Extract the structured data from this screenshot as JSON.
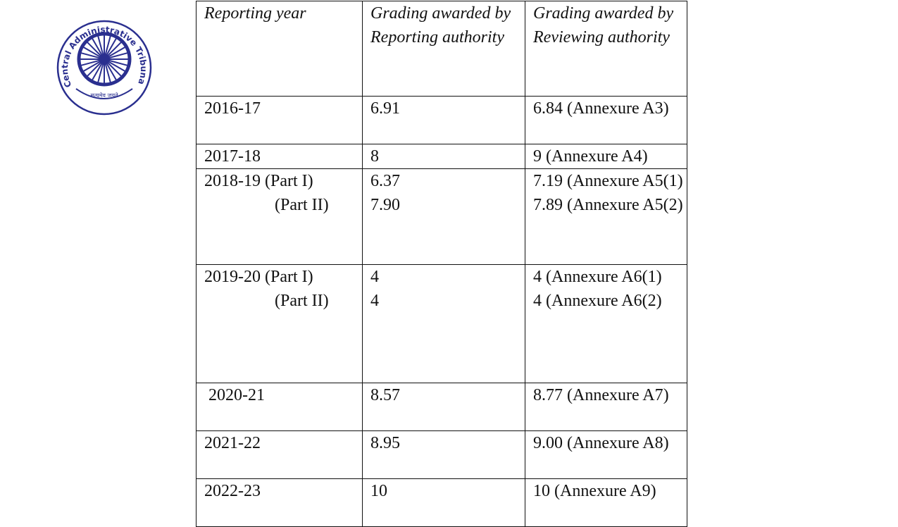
{
  "logo": {
    "text": "Central Administrative Tribunal",
    "motto": "सत्यमेव जयते"
  },
  "table": {
    "header": [
      "Reporting year",
      "Grading awarded by Reporting authority",
      "Grading awarded by Reviewing authority"
    ],
    "rows": [
      [
        [
          "2016-17"
        ],
        [
          "6.91"
        ],
        [
          "6.84 (Annexure A3)"
        ]
      ],
      [
        [
          "2017-18"
        ],
        [
          "8"
        ],
        [
          "9 (Annexure A4)"
        ]
      ],
      [
        [
          "2018-19 (Part I)",
          "(Part II)"
        ],
        [
          "6.37",
          "7.90"
        ],
        [
          "7.19 (Annexure A5(1)",
          "7.89 (Annexure A5(2)"
        ]
      ],
      [
        [
          "2019-20 (Part I)",
          "(Part II)"
        ],
        [
          "4",
          "4"
        ],
        [
          "4 (Annexure A6(1)",
          "4 (Annexure A6(2)"
        ]
      ],
      [
        [
          "2020-21"
        ],
        [
          "8.57"
        ],
        [
          "8.77 (Annexure A7)"
        ]
      ],
      [
        [
          "2021-22"
        ],
        [
          "8.95"
        ],
        [
          "9.00 (Annexure A8)"
        ]
      ],
      [
        [
          "2022-23"
        ],
        [
          "10"
        ],
        [
          "10 (Annexure A9)"
        ]
      ]
    ]
  }
}
